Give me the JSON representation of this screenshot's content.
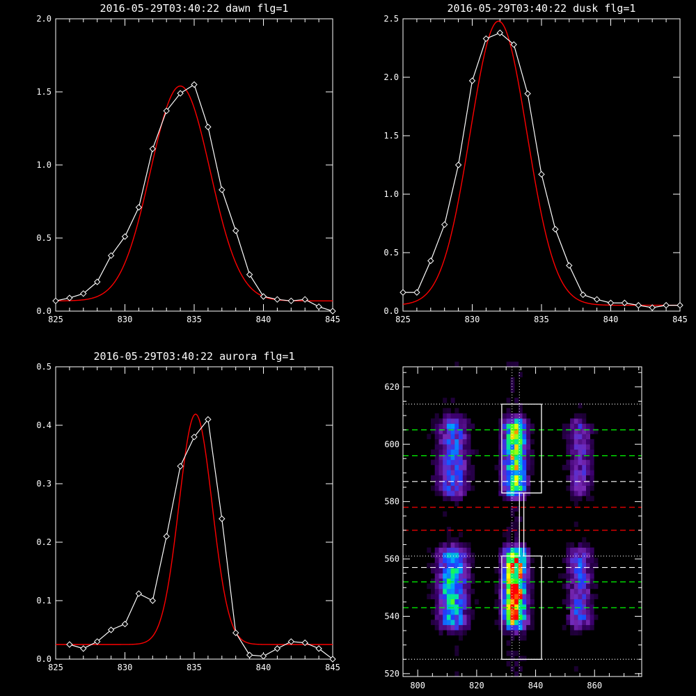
{
  "chart_data": [
    {
      "type": "line",
      "title": "2016-05-29T03:40:22 dawn flg=1",
      "xlim": [
        825,
        845
      ],
      "ylim": [
        0,
        2.0
      ],
      "xticks": [
        825,
        830,
        835,
        840,
        845
      ],
      "yticks": [
        0.0,
        0.5,
        1.0,
        1.5,
        2.0
      ],
      "ytick_labels": [
        "0.0",
        "0.5",
        "1.0",
        "1.5",
        "2.0"
      ],
      "series": [
        {
          "style": "data",
          "color": "#ffffff",
          "x": [
            825,
            826,
            827,
            828,
            829,
            830,
            831,
            832,
            833,
            834,
            835,
            836,
            837,
            838,
            839,
            840,
            841,
            842,
            843,
            844,
            845
          ],
          "y": [
            0.07,
            0.09,
            0.12,
            0.2,
            0.38,
            0.51,
            0.71,
            1.11,
            1.37,
            1.49,
            1.55,
            1.26,
            0.83,
            0.55,
            0.25,
            0.1,
            0.08,
            0.07,
            0.08,
            0.03,
            0.0
          ]
        },
        {
          "style": "fit",
          "color": "#ff0000",
          "amplitude": 1.47,
          "center": 834.0,
          "sigma": 2.15,
          "baseline": 0.07
        }
      ]
    },
    {
      "type": "line",
      "title": "2016-05-29T03:40:22 dusk flg=1",
      "xlim": [
        825,
        845
      ],
      "ylim": [
        0,
        2.5
      ],
      "xticks": [
        825,
        830,
        835,
        840,
        845
      ],
      "yticks": [
        0.0,
        0.5,
        1.0,
        1.5,
        2.0,
        2.5
      ],
      "ytick_labels": [
        "0.0",
        "0.5",
        "1.0",
        "1.5",
        "2.0",
        "2.5"
      ],
      "series": [
        {
          "style": "data",
          "color": "#ffffff",
          "x": [
            825,
            826,
            827,
            828,
            829,
            830,
            831,
            832,
            833,
            834,
            835,
            836,
            837,
            838,
            839,
            840,
            841,
            842,
            843,
            844,
            845
          ],
          "y": [
            0.16,
            0.16,
            0.43,
            0.74,
            1.25,
            1.97,
            2.33,
            2.38,
            2.28,
            1.86,
            1.17,
            0.7,
            0.39,
            0.14,
            0.1,
            0.07,
            0.07,
            0.05,
            0.03,
            0.05,
            0.05
          ]
        },
        {
          "style": "fit",
          "color": "#ff0000",
          "amplitude": 2.43,
          "center": 831.9,
          "sigma": 2.05,
          "baseline": 0.05
        }
      ]
    },
    {
      "type": "line",
      "title": "2016-05-29T03:40:22 aurora flg=1",
      "xlim": [
        825,
        845
      ],
      "ylim": [
        0,
        0.5
      ],
      "xticks": [
        825,
        830,
        835,
        840,
        845
      ],
      "yticks": [
        0.0,
        0.1,
        0.2,
        0.3,
        0.4,
        0.5
      ],
      "ytick_labels": [
        "0.0",
        "0.1",
        "0.2",
        "0.3",
        "0.4",
        "0.5"
      ],
      "series": [
        {
          "style": "data",
          "color": "#ffffff",
          "x": [
            826,
            827,
            828,
            829,
            830,
            831,
            832,
            833,
            834,
            835,
            836,
            837,
            838,
            839,
            840,
            841,
            842,
            843,
            844,
            845
          ],
          "y": [
            0.025,
            0.018,
            0.03,
            0.05,
            0.06,
            0.112,
            0.1,
            0.21,
            0.33,
            0.38,
            0.41,
            0.24,
            0.045,
            0.007,
            0.005,
            0.018,
            0.03,
            0.028,
            0.018,
            0.0
          ]
        },
        {
          "style": "fit",
          "color": "#ff0000",
          "amplitude": 0.394,
          "center": 835.1,
          "sigma": 1.2,
          "baseline": 0.025
        }
      ]
    },
    {
      "type": "heatmap",
      "xlim": [
        795,
        876
      ],
      "ylim": [
        519,
        627
      ],
      "xticks": [
        800,
        820,
        840,
        860
      ],
      "yticks": [
        520,
        540,
        560,
        580,
        600,
        620
      ],
      "emission_columns": [
        {
          "x": 812,
          "width": 3.2,
          "weight": 0.5
        },
        {
          "x": 833,
          "width": 2.4,
          "weight": 1.0
        },
        {
          "x": 855,
          "width": 2.6,
          "weight": 0.32
        }
      ],
      "emission_bands": [
        {
          "y_from": 585,
          "y_to": 606,
          "weight": 0.75
        },
        {
          "y_from": 539,
          "y_to": 561,
          "weight": 1.0
        }
      ],
      "hot_spots": [
        {
          "x": 832,
          "y": 547,
          "value": 1.0
        },
        {
          "x": 834,
          "y": 600,
          "value": 0.6
        },
        {
          "x": 810,
          "y": 548,
          "value": 0.62
        }
      ],
      "colormap": [
        "#000000",
        "#3c006e",
        "#7828b4",
        "#1e3cff",
        "#00a0ff",
        "#00e6a0",
        "#28ff28",
        "#ffff00",
        "#ff8c00",
        "#ff0000"
      ],
      "box_outline": [
        [
          828.5,
          583
        ],
        [
          842,
          583
        ],
        [
          842,
          614
        ],
        [
          828.5,
          614
        ],
        [
          828.5,
          583
        ],
        [
          834.5,
          583
        ],
        [
          834.5,
          561
        ],
        [
          828.5,
          561
        ],
        [
          828.5,
          525
        ],
        [
          842,
          525
        ],
        [
          842,
          561
        ],
        [
          836,
          561
        ],
        [
          836,
          583
        ]
      ],
      "horizontal_lines": [
        {
          "y": 614,
          "color": "#ffffff",
          "style": "dotted"
        },
        {
          "y": 605,
          "color": "#00ff00",
          "style": "dashed"
        },
        {
          "y": 596,
          "color": "#00ff00",
          "style": "dashed"
        },
        {
          "y": 587,
          "color": "#ffffff",
          "style": "dashed"
        },
        {
          "y": 578,
          "color": "#ff0000",
          "style": "dashed"
        },
        {
          "y": 570,
          "color": "#ff0000",
          "style": "dashed"
        },
        {
          "y": 561,
          "color": "#ffffff",
          "style": "dotted"
        },
        {
          "y": 557,
          "color": "#ffffff",
          "style": "dashed"
        },
        {
          "y": 552,
          "color": "#00ff00",
          "style": "dashed"
        },
        {
          "y": 543,
          "color": "#00ff00",
          "style": "dashed"
        },
        {
          "y": 525,
          "color": "#ffffff",
          "style": "dotted"
        }
      ],
      "vertical_lines": [
        {
          "x": 832,
          "color": "#ffffff",
          "style": "dotted"
        },
        {
          "x": 834.5,
          "color": "#ffffff",
          "style": "dotted"
        }
      ]
    }
  ]
}
